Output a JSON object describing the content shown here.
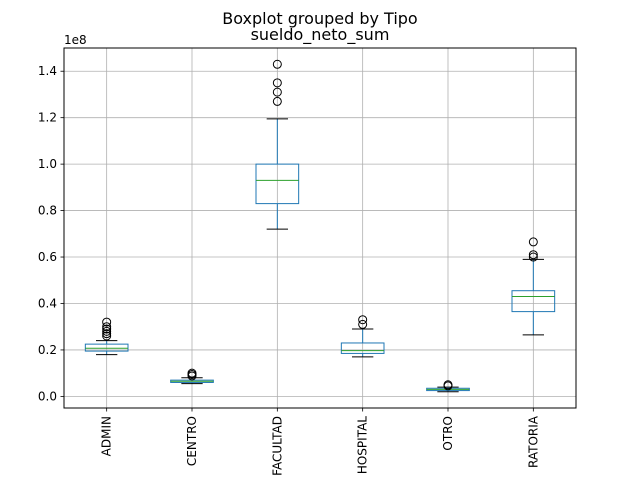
{
  "chart_data": {
    "type": "boxplot",
    "suptitle": "Boxplot grouped by Tipo",
    "title": "sueldo_neto_sum",
    "offset_label": "1e8",
    "xlabel": "",
    "ylabel": "",
    "ylim": [
      -0.05,
      1.5
    ],
    "yticks": [
      0.0,
      0.2,
      0.4,
      0.6,
      0.8,
      1.0,
      1.2,
      1.4
    ],
    "ytick_labels": [
      "0.0",
      "0.2",
      "0.4",
      "0.6",
      "0.8",
      "1.0",
      "1.2",
      "1.4"
    ],
    "grid": true,
    "colors": {
      "box": "#1f77b4",
      "median": "#2ca02c",
      "whisker": "#1f77b4",
      "cap": "#000000",
      "flier": "#000000"
    },
    "categories": [
      "ADMIN",
      "CENTRO",
      "FACULTAD",
      "HOSPITAL",
      "OTRO",
      "RATORIA"
    ],
    "boxes": [
      {
        "category": "ADMIN",
        "whislo": 0.18,
        "q1": 0.195,
        "med": 0.207,
        "q3": 0.225,
        "whishi": 0.24,
        "fliers": [
          0.26,
          0.27,
          0.28,
          0.29,
          0.3,
          0.32
        ]
      },
      {
        "category": "CENTRO",
        "whislo": 0.055,
        "q1": 0.06,
        "med": 0.065,
        "q3": 0.07,
        "whishi": 0.08,
        "fliers": [
          0.088,
          0.094,
          0.1
        ]
      },
      {
        "category": "FACULTAD",
        "whislo": 0.72,
        "q1": 0.83,
        "med": 0.93,
        "q3": 1.0,
        "whishi": 1.195,
        "fliers": [
          1.27,
          1.31,
          1.35,
          1.43
        ]
      },
      {
        "category": "HOSPITAL",
        "whislo": 0.17,
        "q1": 0.185,
        "med": 0.197,
        "q3": 0.23,
        "whishi": 0.29,
        "fliers": [
          0.31,
          0.33
        ]
      },
      {
        "category": "OTRO",
        "whislo": 0.02,
        "q1": 0.025,
        "med": 0.03,
        "q3": 0.035,
        "whishi": 0.04,
        "fliers": [
          0.045,
          0.05
        ]
      },
      {
        "category": "RATORIA",
        "whislo": 0.265,
        "q1": 0.365,
        "med": 0.43,
        "q3": 0.455,
        "whishi": 0.59,
        "fliers": [
          0.6,
          0.61,
          0.665
        ]
      }
    ]
  }
}
